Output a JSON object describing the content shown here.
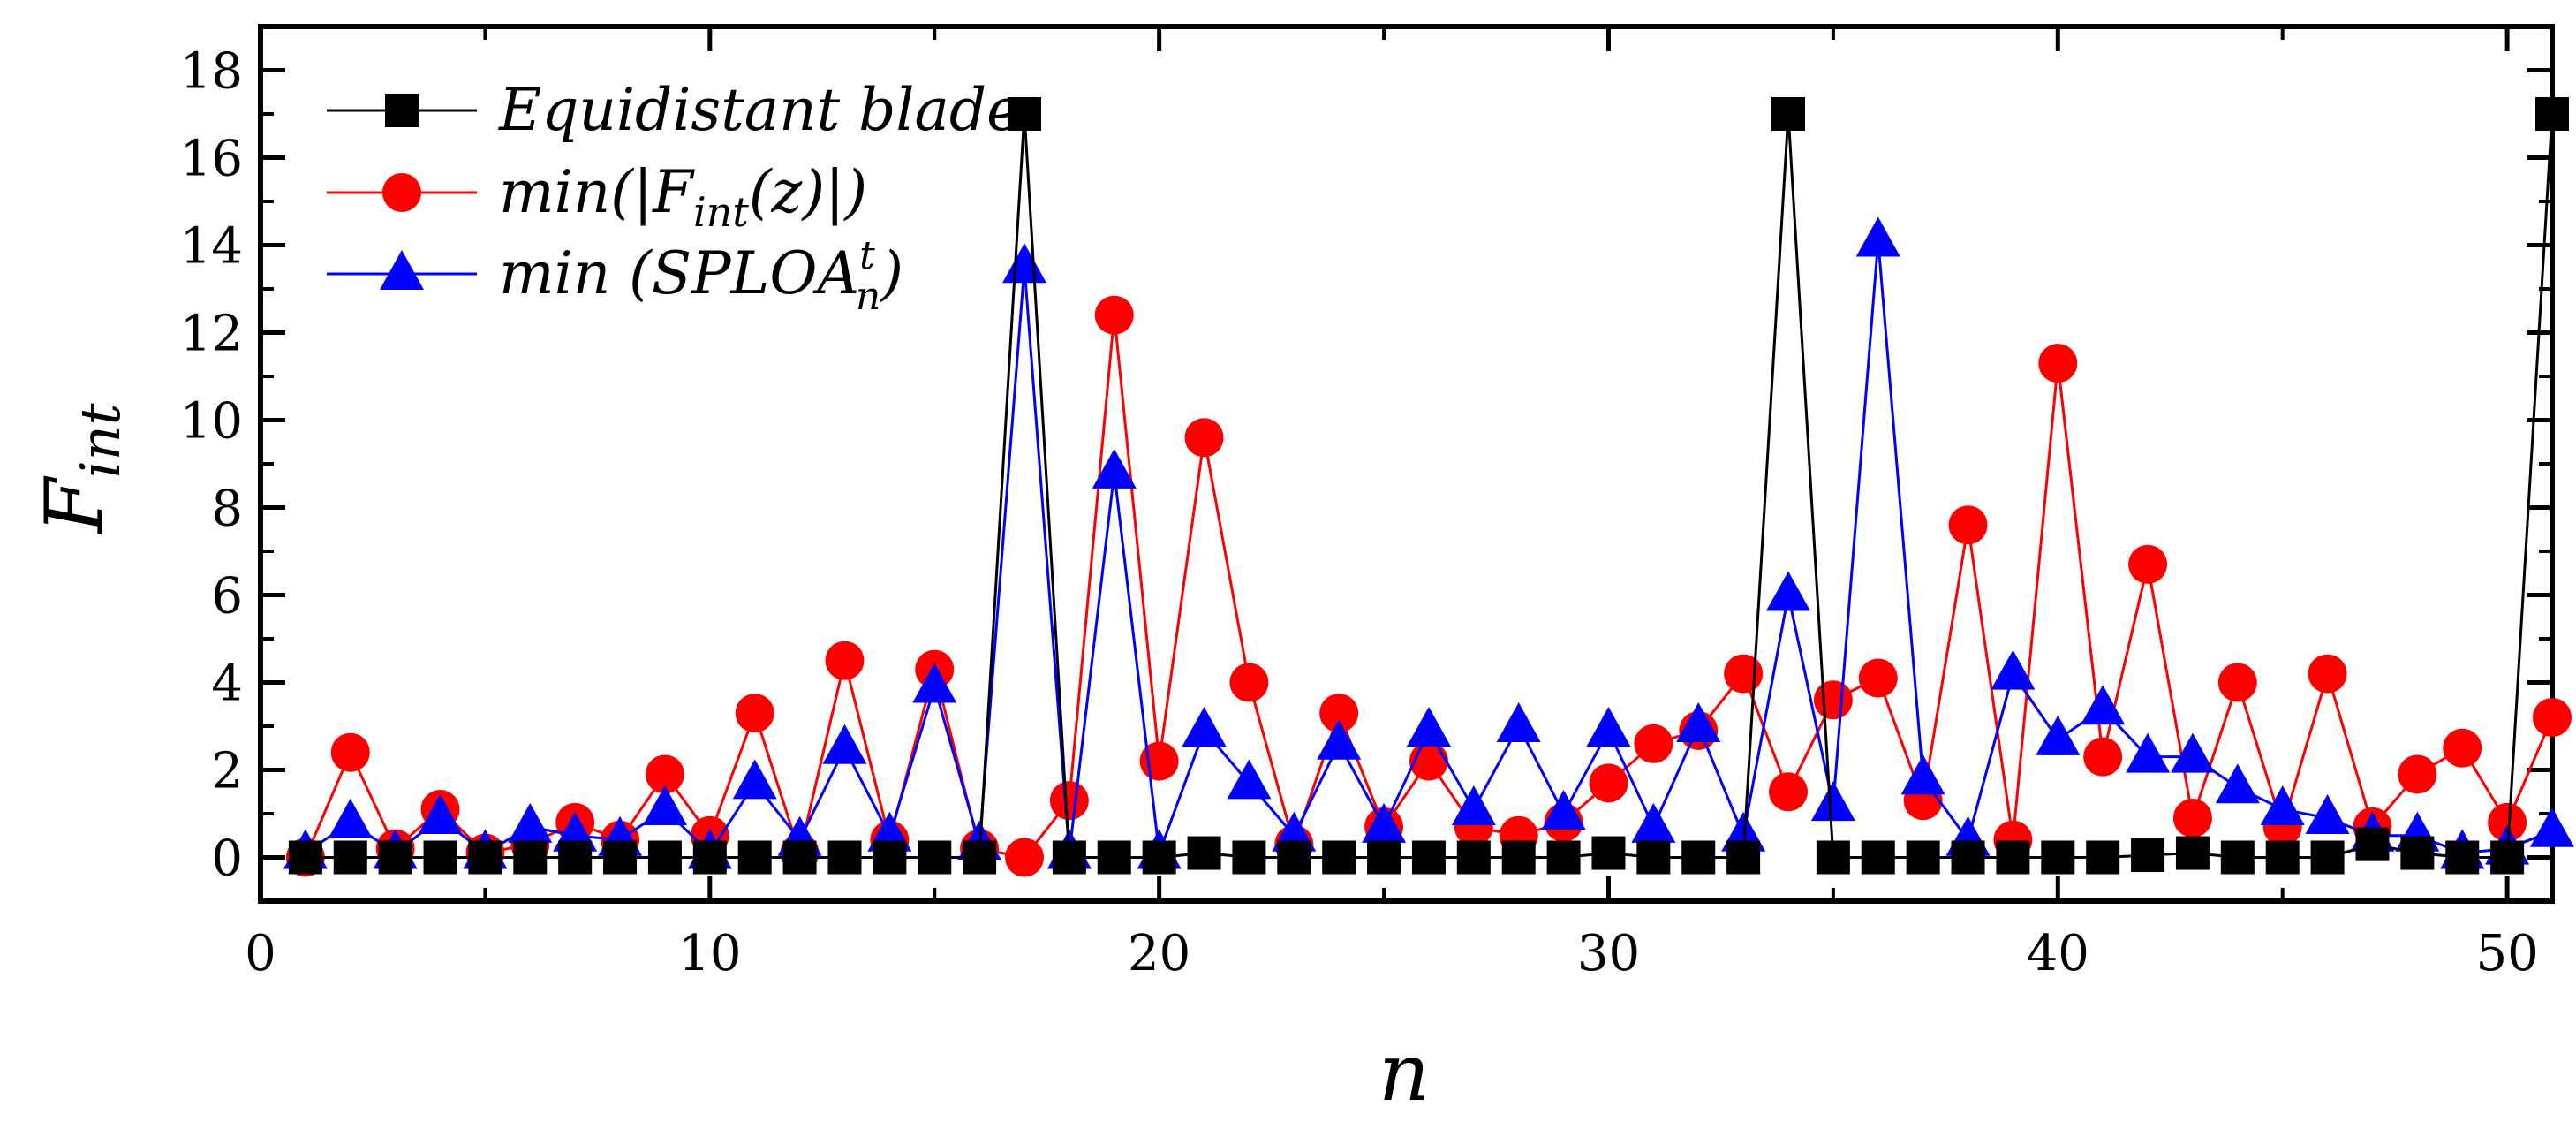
{
  "chart_data": {
    "type": "line",
    "title": "",
    "xlabel": "n",
    "ylabel": "F",
    "ylabel_sub": "int",
    "xlim": [
      0,
      51
    ],
    "ylim": [
      -1,
      19
    ],
    "xticks": [
      0,
      10,
      20,
      30,
      40,
      50
    ],
    "yticks": [
      0,
      2,
      4,
      6,
      8,
      10,
      12,
      14,
      16,
      18
    ],
    "xtick_labels": [
      "0",
      "10",
      "20",
      "30",
      "40",
      "50"
    ],
    "ytick_labels": [
      "0",
      "2",
      "4",
      "6",
      "8",
      "10",
      "12",
      "14",
      "16",
      "18"
    ],
    "legend_position": "top-left",
    "x": [
      1,
      2,
      3,
      4,
      5,
      6,
      7,
      8,
      9,
      10,
      11,
      12,
      13,
      14,
      15,
      16,
      17,
      18,
      19,
      20,
      21,
      22,
      23,
      24,
      25,
      26,
      27,
      28,
      29,
      30,
      31,
      32,
      33,
      34,
      35,
      36,
      37,
      38,
      39,
      40,
      41,
      42,
      43,
      44,
      45,
      46,
      47,
      48,
      49,
      50,
      51
    ],
    "series": [
      {
        "name": "Equidistant blade",
        "legend_label": "Equidistant blade",
        "color": "#000000",
        "marker": "square",
        "values": [
          0,
          0,
          0,
          0,
          0,
          0,
          0,
          0,
          0,
          0,
          0,
          0,
          0,
          0,
          0,
          0,
          17,
          0,
          0,
          0,
          0.1,
          0,
          0,
          0,
          0,
          0,
          0,
          0,
          0,
          0.1,
          0,
          0,
          0,
          17,
          0,
          0,
          0,
          0,
          0,
          0,
          0,
          0.05,
          0.1,
          0,
          0,
          0,
          0.3,
          0.1,
          0,
          0,
          17
        ]
      },
      {
        "name": "min(|Fint(z)|)",
        "legend_main": "min(|F",
        "legend_sub": "int",
        "legend_tail": "(z)|)",
        "color": "#ff0000",
        "marker": "circle",
        "values": [
          0,
          2.4,
          0.2,
          1.1,
          0.1,
          0.3,
          0.8,
          0.4,
          1.9,
          0.5,
          3.3,
          0.1,
          4.5,
          0.4,
          4.3,
          0.2,
          0,
          1.3,
          12.4,
          2.2,
          9.6,
          4.0,
          0.3,
          3.3,
          0.7,
          2.2,
          0.7,
          0.5,
          0.8,
          1.7,
          2.6,
          2.9,
          4.2,
          1.5,
          3.6,
          4.1,
          1.3,
          7.6,
          0.4,
          11.3,
          2.3,
          6.7,
          0.9,
          4.0,
          0.7,
          4.2,
          0.7,
          1.9,
          2.5,
          0.8,
          3.2
        ]
      },
      {
        "name": "min (SPLOA_n^t)",
        "legend_main": "min (SPLOA",
        "legend_sub": "n",
        "legend_sup": "t",
        "legend_tail": ")",
        "color": "#0000ff",
        "marker": "triangle",
        "values": [
          0.1,
          0.8,
          0.1,
          0.9,
          0.1,
          0.7,
          0.5,
          0.4,
          1.1,
          0.1,
          1.7,
          0.4,
          2.5,
          0.5,
          3.9,
          0.3,
          13.5,
          0.1,
          8.8,
          0.1,
          2.9,
          1.7,
          0.5,
          2.6,
          0.7,
          2.9,
          1.1,
          3.0,
          1.0,
          2.9,
          0.7,
          3.0,
          0.5,
          6.0,
          1.2,
          14.1,
          1.8,
          0.4,
          4.2,
          2.7,
          3.4,
          2.3,
          2.3,
          1.6,
          1.1,
          0.9,
          0.5,
          0.5,
          0.1,
          0.2,
          0.6
        ]
      }
    ]
  }
}
